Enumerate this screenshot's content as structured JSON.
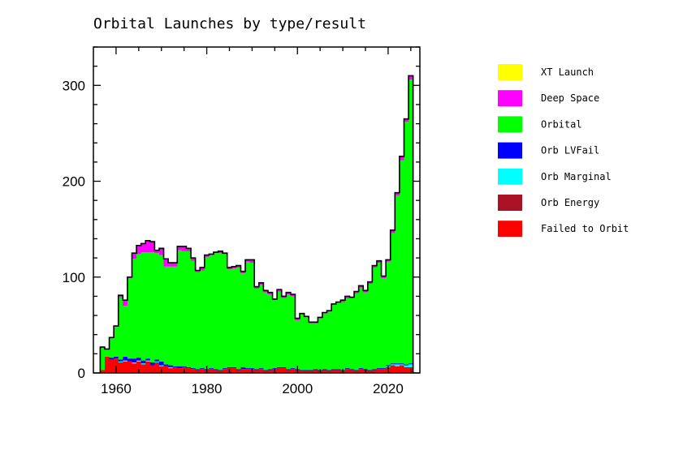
{
  "chart_data": {
    "type": "bar",
    "stacked": true,
    "title": "Orbital Launches by type/result",
    "xlabel": "",
    "ylabel": "",
    "xlim": [
      1955,
      2027
    ],
    "ylim": [
      0,
      340
    ],
    "x_ticks": [
      1960,
      1980,
      2000,
      2020
    ],
    "y_ticks": [
      0,
      100,
      200,
      300
    ],
    "grid": false,
    "legend_position": "right",
    "years": [
      1957,
      1958,
      1959,
      1960,
      1961,
      1962,
      1963,
      1964,
      1965,
      1966,
      1967,
      1968,
      1969,
      1970,
      1971,
      1972,
      1973,
      1974,
      1975,
      1976,
      1977,
      1978,
      1979,
      1980,
      1981,
      1982,
      1983,
      1984,
      1985,
      1986,
      1987,
      1988,
      1989,
      1990,
      1991,
      1992,
      1993,
      1994,
      1995,
      1996,
      1997,
      1998,
      1999,
      2000,
      2001,
      2002,
      2003,
      2004,
      2005,
      2006,
      2007,
      2008,
      2009,
      2010,
      2011,
      2012,
      2013,
      2014,
      2015,
      2016,
      2017,
      2018,
      2019,
      2020,
      2021,
      2022,
      2023,
      2024,
      2025
    ],
    "series": [
      {
        "name": "Failed to Orbit",
        "color": "#ff0000",
        "values": [
          3,
          17,
          14,
          15,
          11,
          12,
          12,
          10,
          12,
          9,
          12,
          8,
          11,
          7,
          7,
          5,
          6,
          5,
          6,
          5,
          4,
          3,
          4,
          3,
          4,
          3,
          2,
          4,
          5,
          5,
          3,
          4,
          4,
          4,
          3,
          4,
          2,
          3,
          4,
          5,
          5,
          3,
          4,
          3,
          2,
          2,
          2,
          3,
          2,
          3,
          2,
          3,
          3,
          2,
          4,
          3,
          2,
          4,
          3,
          2,
          3,
          4,
          4,
          6,
          8,
          7,
          8,
          6,
          6
        ]
      },
      {
        "name": "Orb Energy",
        "color": "#aa1122",
        "values": [
          0,
          0,
          0,
          0,
          0,
          0,
          0,
          0,
          0,
          0,
          0,
          0,
          0,
          0,
          0,
          0,
          0,
          0,
          0,
          0,
          0,
          0,
          0,
          0,
          0,
          0,
          0,
          0,
          0,
          0,
          0,
          0,
          0,
          0,
          0,
          0,
          0,
          0,
          0,
          0,
          0,
          0,
          0,
          0,
          0,
          0,
          0,
          0,
          0,
          0,
          0,
          0,
          0,
          0,
          0,
          0,
          0,
          0,
          0,
          0,
          0,
          0,
          0,
          0,
          0,
          0,
          0,
          0,
          0
        ]
      },
      {
        "name": "Orb Marginal",
        "color": "#00ffff",
        "values": [
          0,
          0,
          0,
          0,
          1,
          1,
          0,
          1,
          1,
          1,
          1,
          0,
          1,
          1,
          0,
          1,
          0,
          0,
          0,
          0,
          0,
          0,
          0,
          0,
          0,
          0,
          0,
          0,
          0,
          0,
          0,
          0,
          0,
          0,
          0,
          0,
          0,
          0,
          0,
          0,
          0,
          0,
          0,
          0,
          0,
          0,
          0,
          0,
          0,
          0,
          0,
          0,
          0,
          0,
          0,
          0,
          0,
          0,
          0,
          0,
          0,
          0,
          0,
          1,
          1,
          2,
          1,
          2,
          3
        ]
      },
      {
        "name": "Orb LVFail",
        "color": "#0000ff",
        "values": [
          0,
          0,
          2,
          2,
          2,
          4,
          3,
          4,
          3,
          3,
          2,
          3,
          2,
          4,
          2,
          2,
          1,
          2,
          1,
          1,
          1,
          1,
          1,
          1,
          1,
          1,
          1,
          1,
          1,
          1,
          1,
          2,
          1,
          1,
          1,
          1,
          1,
          1,
          1,
          1,
          1,
          1,
          1,
          1,
          1,
          1,
          1,
          1,
          1,
          1,
          1,
          1,
          1,
          1,
          1,
          1,
          1,
          1,
          1,
          1,
          1,
          1,
          1,
          1,
          1,
          1,
          1,
          1,
          1
        ]
      },
      {
        "name": "Orbital",
        "color": "#00ff00",
        "values": [
          24,
          7,
          20,
          31,
          65,
          53,
          84,
          104,
          108,
          113,
          111,
          115,
          111,
          111,
          102,
          103,
          104,
          121,
          120,
          121,
          112,
          101,
          102,
          117,
          118,
          121,
          122,
          119,
          102,
          103,
          106,
          98,
          111,
          110,
          84,
          87,
          81,
          78,
          71,
          79,
          72,
          78,
          75,
          51,
          58,
          55,
          49,
          48,
          54,
          58,
          61,
          67,
          69,
          71,
          73,
          74,
          80,
          84,
          80,
          90,
          106,
          110,
          94,
          108,
          136,
          175,
          212,
          253,
          296
        ]
      },
      {
        "name": "Deep Space",
        "color": "#ff00ff",
        "values": [
          0,
          1,
          1,
          1,
          2,
          6,
          1,
          6,
          9,
          9,
          12,
          11,
          3,
          7,
          8,
          4,
          4,
          4,
          5,
          3,
          3,
          2,
          3,
          2,
          1,
          1,
          2,
          1,
          2,
          2,
          2,
          2,
          2,
          3,
          2,
          2,
          2,
          2,
          1,
          2,
          2,
          2,
          2,
          2,
          1,
          1,
          1,
          1,
          1,
          1,
          1,
          1,
          1,
          2,
          2,
          1,
          2,
          2,
          2,
          2,
          2,
          2,
          2,
          2,
          3,
          3,
          4,
          3,
          4
        ]
      },
      {
        "name": "XT Launch",
        "color": "#ffff00",
        "values": [
          0,
          0,
          0,
          0,
          0,
          0,
          0,
          0,
          0,
          0,
          0,
          0,
          0,
          0,
          0,
          0,
          0,
          0,
          0,
          0,
          0,
          0,
          0,
          0,
          0,
          0,
          0,
          0,
          0,
          0,
          0,
          0,
          0,
          0,
          0,
          0,
          0,
          0,
          0,
          0,
          0,
          0,
          0,
          0,
          0,
          0,
          0,
          0,
          0,
          0,
          0,
          0,
          0,
          0,
          0,
          0,
          0,
          0,
          0,
          0,
          0,
          0,
          0,
          0,
          0,
          0,
          0,
          0,
          0
        ]
      }
    ]
  }
}
